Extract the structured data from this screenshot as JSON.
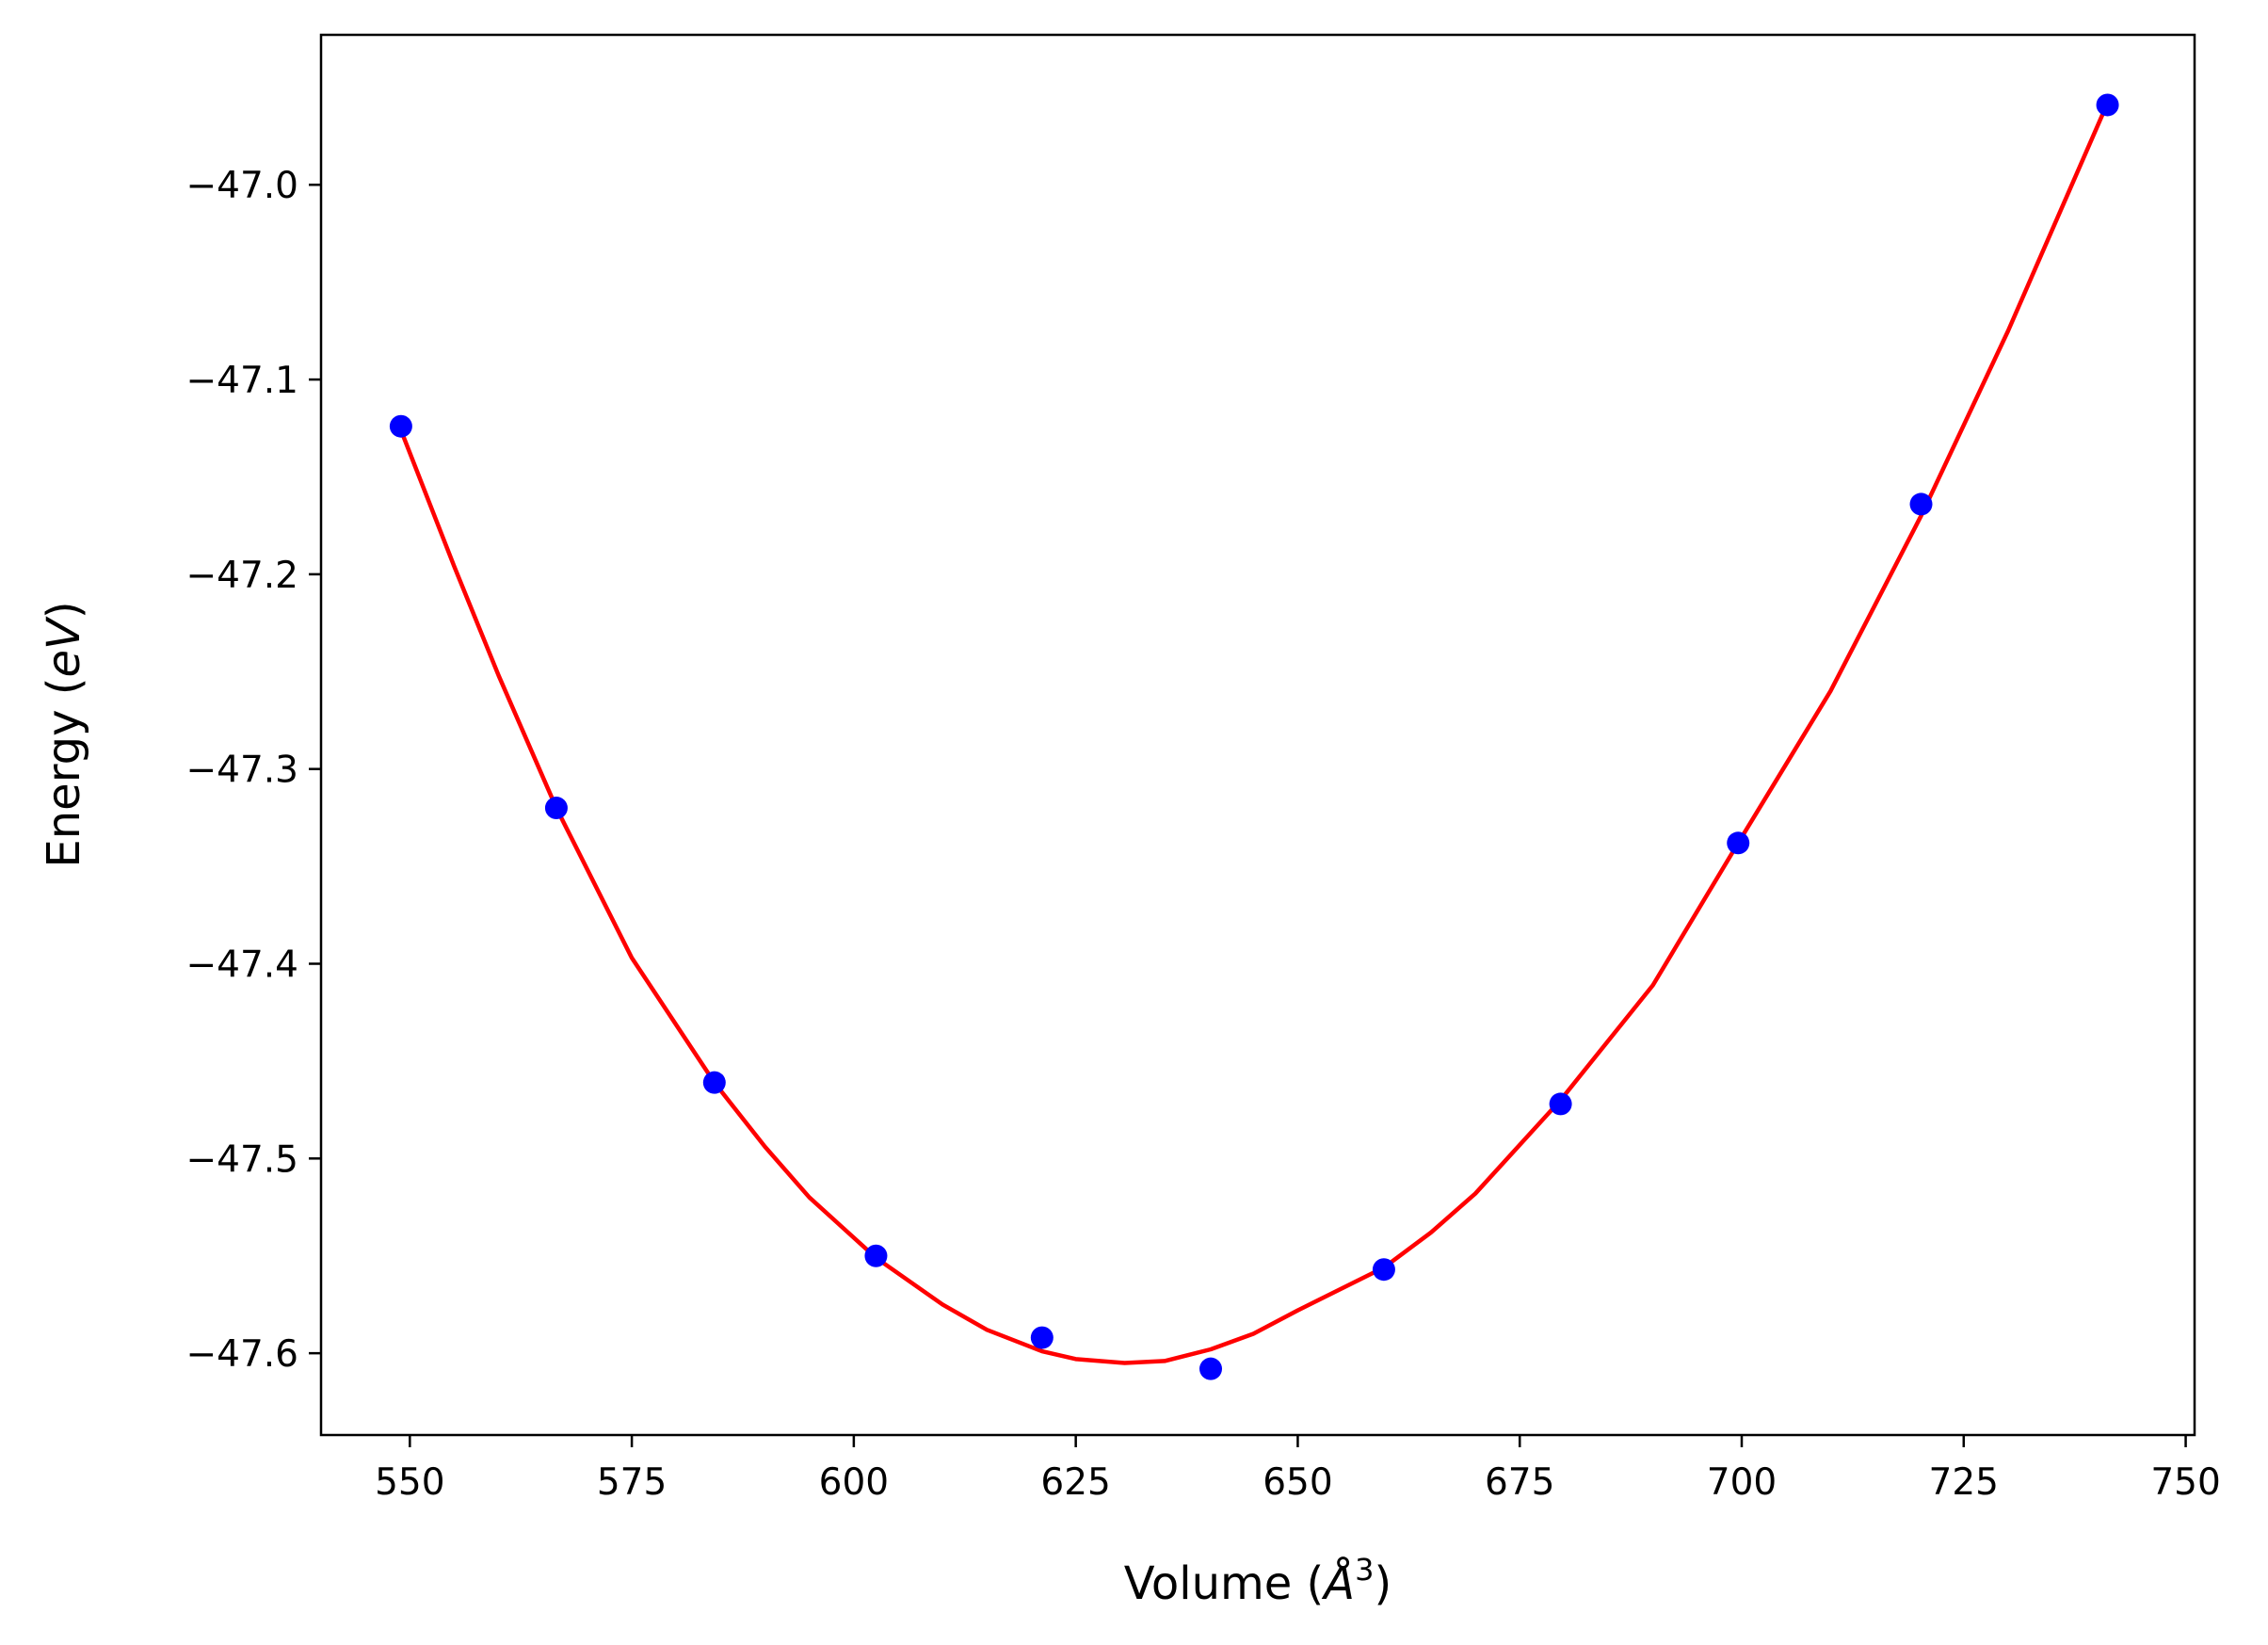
{
  "chart_data": {
    "type": "scatter",
    "xlabel_text": "Volume (",
    "xlabel_unit": "Å",
    "xlabel_exp": "3",
    "xlabel_close": ")",
    "ylabel_text": "Energy (",
    "ylabel_unit": "eV",
    "ylabel_close": ")",
    "xlim": [
      540,
      751
    ],
    "ylim": [
      -47.642,
      -46.923
    ],
    "xticks": [
      550,
      575,
      600,
      625,
      650,
      675,
      700,
      725,
      750
    ],
    "xtick_labels": [
      "550",
      "575",
      "600",
      "625",
      "650",
      "675",
      "700",
      "725",
      "750"
    ],
    "yticks": [
      -47.6,
      -47.5,
      -47.4,
      -47.3,
      -47.2,
      -47.1,
      -47.0
    ],
    "ytick_labels": [
      "−47.6",
      "−47.5",
      "−47.4",
      "−47.3",
      "−47.2",
      "−47.1",
      "−47.0"
    ],
    "grid": false,
    "series": [
      {
        "kind": "points",
        "color": "#0000ff",
        "x": [
          549.0,
          566.5,
          584.3,
          602.5,
          621.2,
          640.2,
          659.7,
          679.6,
          699.6,
          720.2,
          741.2
        ],
        "y": [
          -47.124,
          -47.32,
          -47.461,
          -47.55,
          -47.592,
          -47.608,
          -47.557,
          -47.472,
          -47.338,
          -47.164,
          -46.959
        ]
      },
      {
        "kind": "fit-curve",
        "color": "#ff0000",
        "x": [
          549,
          555,
          560,
          566.5,
          575,
          584.3,
          590,
          595,
          602.5,
          610,
          615,
          621.2,
          625,
          630.5,
          635,
          640.2,
          645,
          650,
          659.7,
          665,
          670,
          679.6,
          690,
          699.6,
          710,
          720.2,
          730,
          741.2
        ],
        "y": [
          -47.126,
          -47.196,
          -47.252,
          -47.32,
          -47.397,
          -47.461,
          -47.494,
          -47.52,
          -47.551,
          -47.575,
          -47.588,
          -47.599,
          -47.603,
          -47.605,
          -47.604,
          -47.598,
          -47.59,
          -47.578,
          -47.556,
          -47.538,
          -47.518,
          -47.47,
          -47.411,
          -47.338,
          -47.26,
          -47.17,
          -47.075,
          -46.958
        ]
      }
    ]
  }
}
